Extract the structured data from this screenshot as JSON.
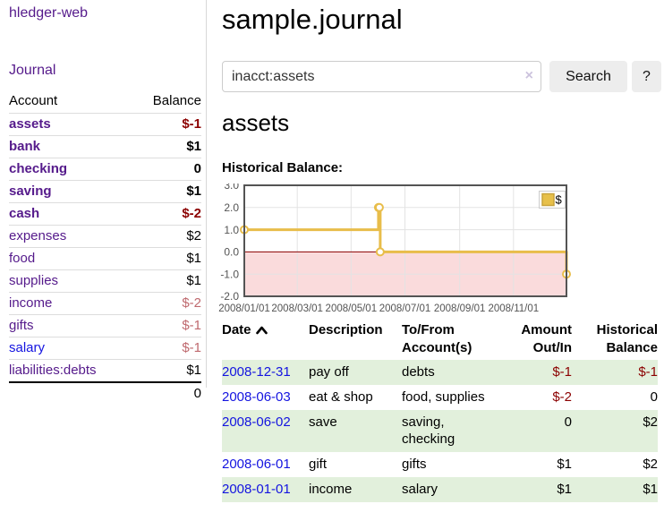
{
  "app": {
    "title": "hledger-web"
  },
  "colors": {
    "link_purple": "#551A8B",
    "link_blue": "#1414E0",
    "negative_strong": "#8B0000",
    "negative_muted": "#BF696E",
    "row_shade_green": "#E2F0DC",
    "button_bg": "#EDEDED",
    "chart_gold": "#E8BD4A"
  },
  "sidebar": {
    "journal_label": "Journal",
    "accounts": {
      "header_account": "Account",
      "header_balance": "Balance",
      "rows": [
        {
          "account": "assets",
          "balance": "$-1",
          "level": 1,
          "bold": true,
          "link": "purple"
        },
        {
          "account": "bank",
          "balance": "$1",
          "level": 2,
          "bold": true,
          "link": "purple"
        },
        {
          "account": "checking",
          "balance": "0",
          "level": 3,
          "bold": true,
          "link": "purple"
        },
        {
          "account": "saving",
          "balance": "$1",
          "level": 3,
          "bold": true,
          "link": "purple"
        },
        {
          "account": "cash",
          "balance": "$-2",
          "level": 2,
          "bold": true,
          "link": "purple"
        },
        {
          "account": "expenses",
          "balance": "$2",
          "level": 1,
          "bold": false,
          "link": "purple"
        },
        {
          "account": "food",
          "balance": "$1",
          "level": 2,
          "bold": false,
          "link": "purple"
        },
        {
          "account": "supplies",
          "balance": "$1",
          "level": 2,
          "bold": false,
          "link": "purple"
        },
        {
          "account": "income",
          "balance": "$-2",
          "level": 1,
          "bold": false,
          "link": "purple"
        },
        {
          "account": "gifts",
          "balance": "$-1",
          "level": 2,
          "bold": false,
          "link": "purple"
        },
        {
          "account": "salary",
          "balance": "$-1",
          "level": 2,
          "bold": false,
          "link": "blue"
        },
        {
          "account": "liabilities:debts",
          "balance": "$1",
          "level": 1,
          "bold": false,
          "link": "purple"
        }
      ],
      "total": "0"
    }
  },
  "header": {
    "title": "sample.journal"
  },
  "search": {
    "value": "inacct:assets",
    "clear_icon": "×",
    "button_label": "Search",
    "help_label": "?"
  },
  "section": {
    "title": "assets",
    "chart_label": "Historical Balance:"
  },
  "chart_data": {
    "type": "line",
    "title": "Historical Balance:",
    "x_range": [
      "2008-01-01",
      "2008-12-31"
    ],
    "ylim": [
      -2,
      3
    ],
    "y_ticks": [
      "3.0",
      "2.0",
      "1.0",
      "0.0",
      "-1.0",
      "-2.0"
    ],
    "x_ticks": [
      "2008/01/01",
      "2008/03/01",
      "2008/05/01",
      "2008/07/01",
      "2008/09/01",
      "2008/11/01"
    ],
    "series": [
      {
        "name": "$",
        "color": "#E8BD4A",
        "marker_fill": "#FFFFFF",
        "steps": true,
        "points": [
          {
            "date": "2008-01-01",
            "value": 1
          },
          {
            "date": "2008-06-01",
            "value": 2
          },
          {
            "date": "2008-06-02",
            "value": 2
          },
          {
            "date": "2008-06-03",
            "value": 0
          },
          {
            "date": "2008-12-31",
            "value": -1
          }
        ]
      }
    ],
    "legend": {
      "label": "$",
      "position": "top-right"
    },
    "grid": true,
    "negative_region_fill": "#FADBDC",
    "zero_line_color": "#8B0000",
    "plot_border_color": "#545454",
    "grid_color": "#E3E3E3",
    "tick_color": "#545454",
    "legend_swatch_fill": "#E7C04A",
    "legend_swatch_border": "#C8A33B"
  },
  "register": {
    "headers": [
      {
        "label": "Date",
        "align": "left",
        "sort": "asc"
      },
      {
        "label": "Description",
        "align": "left"
      },
      {
        "label": "To/From Account(s)",
        "align": "left"
      },
      {
        "label": "Amount Out/In",
        "align": "right"
      },
      {
        "label": "Historical Balance",
        "align": "right"
      }
    ],
    "rows": [
      {
        "date": "2008-12-31",
        "description": "pay off",
        "accounts": "debts",
        "amount": "$-1",
        "balance": "$-1",
        "shaded": true
      },
      {
        "date": "2008-06-03",
        "description": "eat & shop",
        "accounts": "food, supplies",
        "amount": "$-2",
        "balance": "0",
        "shaded": false
      },
      {
        "date": "2008-06-02",
        "description": "save",
        "accounts": "saving, checking",
        "amount": "0",
        "balance": "$2",
        "shaded": true
      },
      {
        "date": "2008-06-01",
        "description": "gift",
        "accounts": "gifts",
        "amount": "$1",
        "balance": "$2",
        "shaded": false
      },
      {
        "date": "2008-01-01",
        "description": "income",
        "accounts": "salary",
        "amount": "$1",
        "balance": "$1",
        "shaded": true
      }
    ]
  }
}
